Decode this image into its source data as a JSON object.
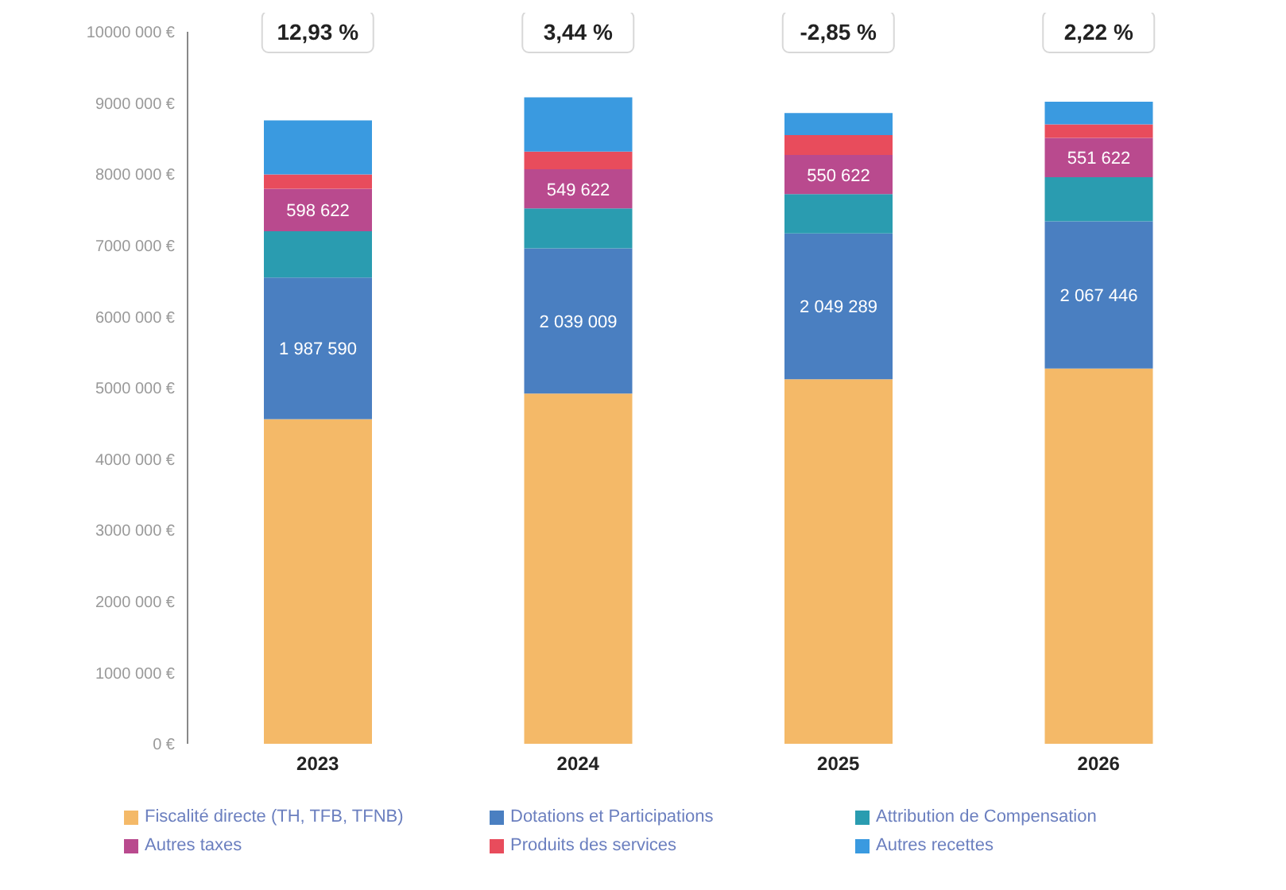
{
  "chart_data": {
    "type": "bar",
    "stacked": true,
    "categories": [
      "2023",
      "2024",
      "2025",
      "2026"
    ],
    "series": [
      {
        "name": "Fiscalité directe (TH, TFB, TFNB)",
        "color": "#f4b968",
        "values": [
          4560000,
          4920000,
          5120000,
          5270000
        ],
        "value_labels": [
          null,
          null,
          null,
          null
        ]
      },
      {
        "name": "Dotations et Participations",
        "color": "#4a7fc1",
        "values": [
          1987590,
          2039009,
          2049289,
          2067446
        ],
        "value_labels": [
          "1 987 590",
          "2 039 009",
          "2 049 289",
          "2 067 446"
        ]
      },
      {
        "name": "Attribution de Compensation",
        "color": "#2a9cb0",
        "values": [
          650000,
          560000,
          550000,
          620000
        ],
        "value_labels": [
          null,
          null,
          null,
          null
        ]
      },
      {
        "name": "Autres taxes",
        "color": "#b94a8e",
        "values": [
          598622,
          549622,
          550622,
          551622
        ],
        "value_labels": [
          "598 622",
          "549 622",
          "550 622",
          "551 622"
        ]
      },
      {
        "name": "Produits des services",
        "color": "#e84c5c",
        "values": [
          200000,
          250000,
          280000,
          190000
        ],
        "value_labels": [
          null,
          null,
          null,
          null
        ]
      },
      {
        "name": "Autres recettes",
        "color": "#3a9ae0",
        "values": [
          760000,
          760000,
          310000,
          320000
        ],
        "value_labels": [
          null,
          null,
          null,
          null
        ]
      }
    ],
    "ylim": [
      0,
      10000000
    ],
    "yticks": [
      {
        "value": 0,
        "label": "0 €"
      },
      {
        "value": 1000000,
        "label": "1000 000 €"
      },
      {
        "value": 2000000,
        "label": "2000 000 €"
      },
      {
        "value": 3000000,
        "label": "3000 000 €"
      },
      {
        "value": 4000000,
        "label": "4000 000 €"
      },
      {
        "value": 5000000,
        "label": "5000 000 €"
      },
      {
        "value": 6000000,
        "label": "6000 000 €"
      },
      {
        "value": 7000000,
        "label": "7000 000 €"
      },
      {
        "value": 8000000,
        "label": "8000 000 €"
      },
      {
        "value": 9000000,
        "label": "9000 000 €"
      },
      {
        "value": 10000000,
        "label": "10000 000 €"
      }
    ],
    "annotations": [
      "12,93 %",
      "3,44 %",
      "-2,85 %",
      "2,22 %"
    ],
    "grid": false,
    "legend": "bottom"
  }
}
